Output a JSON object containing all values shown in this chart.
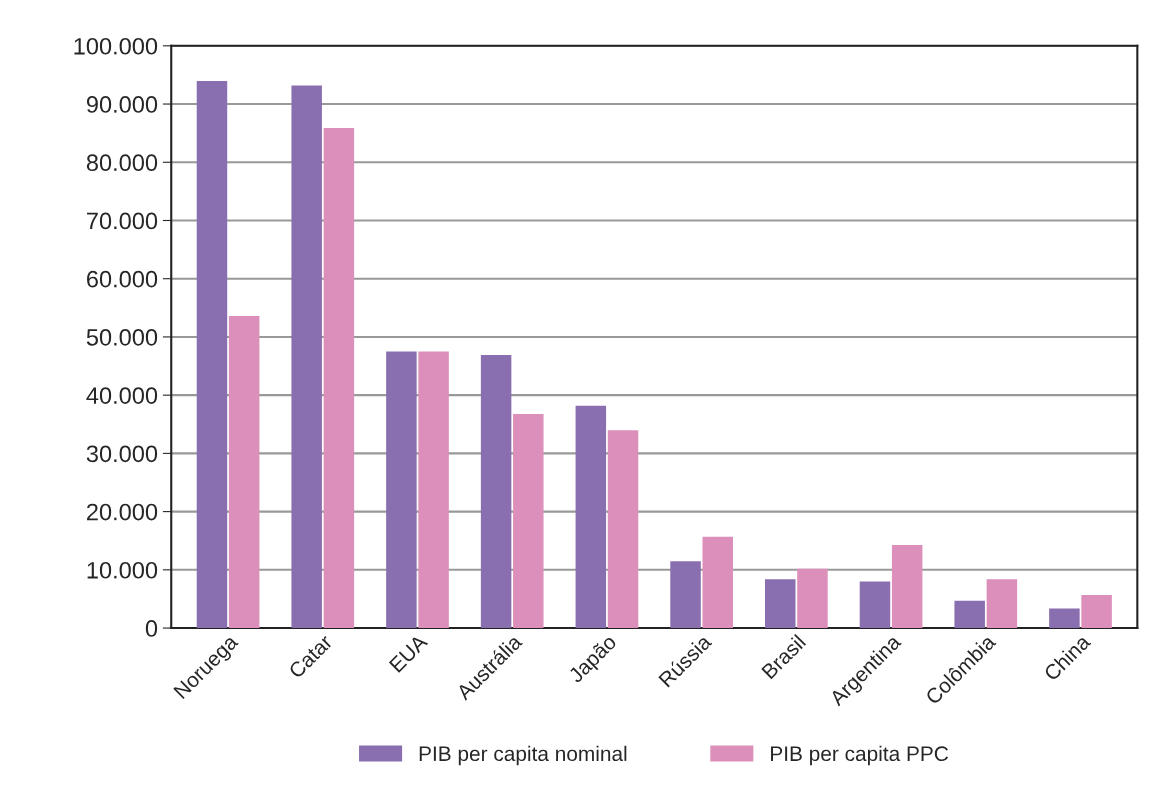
{
  "chart_data": {
    "type": "bar",
    "categories": [
      "Noruega",
      "Catar",
      "EUA",
      "Austrália",
      "Japão",
      "Rússia",
      "Brasil",
      "Argentina",
      "Colômbia",
      "China"
    ],
    "series": [
      {
        "name": "PIB per capita nominal",
        "color": "#8a6fb0",
        "values": [
          93800,
          93000,
          47300,
          46700,
          38000,
          11300,
          8200,
          7800,
          4500,
          3200
        ]
      },
      {
        "name": "PIB per capita PPC",
        "color": "#dc8fba",
        "values": [
          53400,
          85700,
          47300,
          36600,
          33800,
          15500,
          10000,
          14100,
          8200,
          5500
        ]
      }
    ],
    "ylim": [
      0,
      100000
    ],
    "yticks": [
      0,
      {
        "value": 10000,
        "label": "10.000"
      },
      {
        "value": 20000,
        "label": "20.000"
      },
      {
        "value": 30000,
        "label": "30.000"
      },
      {
        "value": 40000,
        "label": "40.000"
      },
      {
        "value": 50000,
        "label": "50.000"
      },
      {
        "value": 60000,
        "label": "60.000"
      },
      {
        "value": 70000,
        "label": "70.000"
      },
      {
        "value": 80000,
        "label": "80.000"
      },
      {
        "value": 90000,
        "label": "90.000"
      },
      {
        "value": 100000,
        "label": "100.000"
      }
    ],
    "grid": "y",
    "legend": "bottom"
  }
}
